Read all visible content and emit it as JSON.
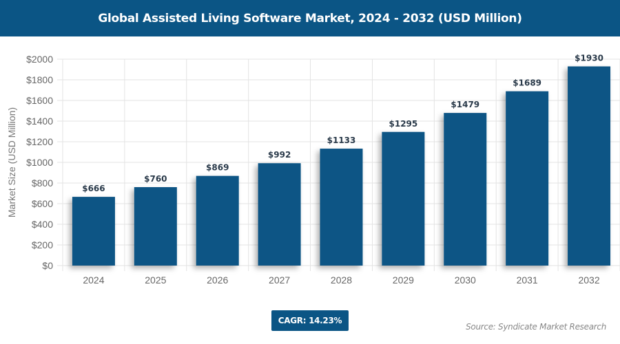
{
  "header": {
    "title": "Global Assisted Living Software Market, 2024 - 2032 (USD Million)"
  },
  "chart_data": {
    "type": "bar",
    "title": "Global Assisted Living Software Market, 2024 - 2032 (USD Million)",
    "categories": [
      "2024",
      "2025",
      "2026",
      "2027",
      "2028",
      "2029",
      "2030",
      "2031",
      "2032"
    ],
    "values": [
      666,
      760,
      869,
      992,
      1133,
      1295,
      1479,
      1689,
      1930
    ],
    "data_labels": [
      "$666",
      "$760",
      "$869",
      "$992",
      "$1133",
      "$1295",
      "$1479",
      "$1689",
      "$1930"
    ],
    "xlabel": "",
    "ylabel": "Market Size (USD Million)",
    "ylim": [
      0,
      2000
    ],
    "yticks": [
      0,
      200,
      400,
      600,
      800,
      1000,
      1200,
      1400,
      1600,
      1800,
      2000
    ],
    "ytick_labels": [
      "$0",
      "$200",
      "$400",
      "$600",
      "$800",
      "$1000",
      "$1200",
      "$1400",
      "$1600",
      "$1800",
      "$2000"
    ],
    "grid": true,
    "bar_color": "#0b5585"
  },
  "footer": {
    "cagr": "CAGR: 14.23%",
    "source": "Source: Syndicate Market Research"
  }
}
